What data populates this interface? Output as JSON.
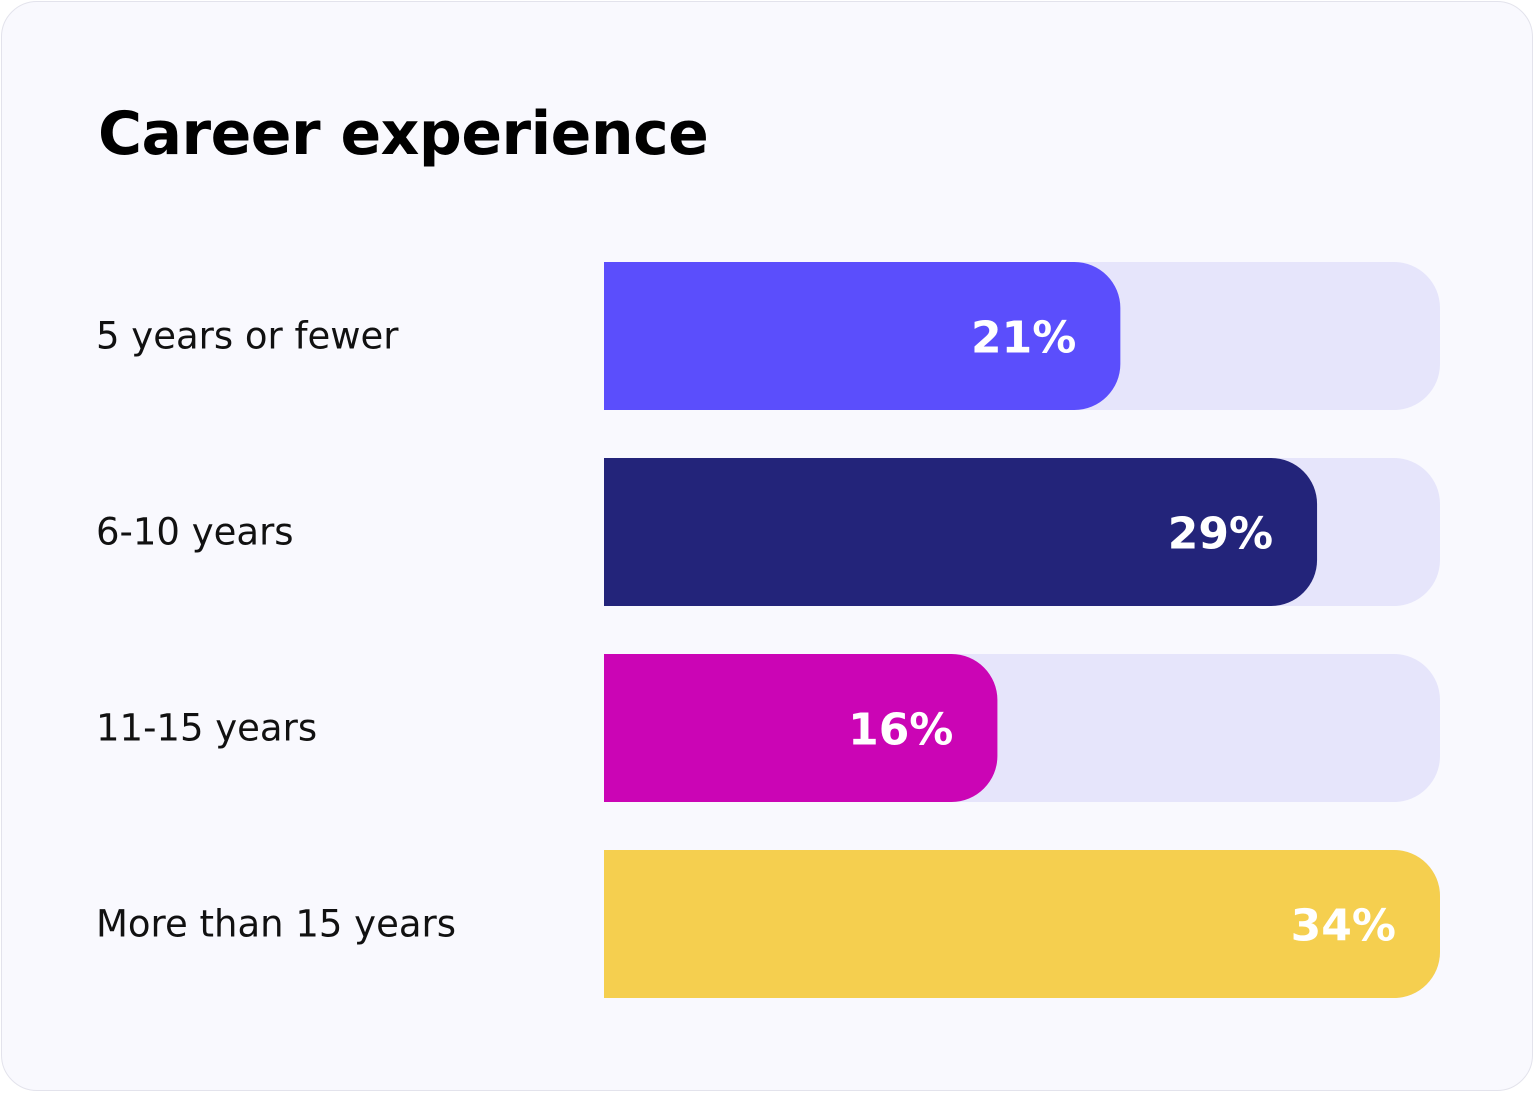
{
  "colors": {
    "card_background": "#f9f9fe",
    "track": "#e6e5fb",
    "text": "#111111",
    "value_text": "#ffffff"
  },
  "chart_data": {
    "type": "bar",
    "orientation": "horizontal",
    "title": "Career experience",
    "categories": [
      "5 years or fewer",
      "6-10 years",
      "11-15 years",
      "More than 15 years"
    ],
    "values": [
      21,
      29,
      16,
      34
    ],
    "value_labels": [
      "21%",
      "29%",
      "16%",
      "34%"
    ],
    "bar_colors": [
      "#5b4efc",
      "#23247a",
      "#cb05b5",
      "#f5cf4f"
    ],
    "xlim": [
      0,
      34
    ],
    "grid": false,
    "legend": "none"
  }
}
